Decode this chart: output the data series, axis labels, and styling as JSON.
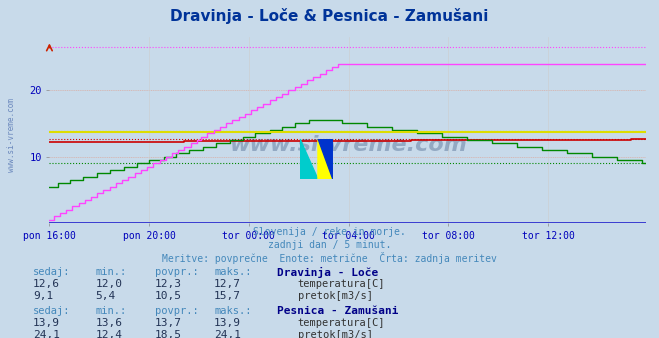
{
  "title": "Dravinja - Loče & Pesnica - Zamušani",
  "title_color": "#003399",
  "bg_color": "#c8daea",
  "plot_bg_color": "#c8daea",
  "x_label_color": "#0000bb",
  "x_ticks": [
    "pon 16:00",
    "pon 20:00",
    "tor 00:00",
    "tor 04:00",
    "tor 08:00",
    "tor 12:00"
  ],
  "x_tick_positions": [
    0,
    48,
    96,
    144,
    192,
    240
  ],
  "n_points": 288,
  "ylim": [
    0,
    28
  ],
  "yticks": [
    10,
    20
  ],
  "subtitle_lines": [
    "Slovenija / reke in morje.",
    "zadnji dan / 5 minut.",
    "Meritve: povprečne  Enote: metrične  Črta: zadnja meritev"
  ],
  "subtitle_color": "#4488bb",
  "s1_temp_color": "#cc0000",
  "s1_flow_color": "#008800",
  "s2_temp_color": "#dddd00",
  "s2_flow_color": "#ff44ff",
  "watermark": "www.si-vreme.com",
  "watermark_color": "#1a3a6a",
  "legend": {
    "station1": "Dravinja - Loče",
    "station1_color": "#000088",
    "s1_sedaj": "12,6",
    "s1_min": "12,0",
    "s1_povpr": "12,3",
    "s1_maks": "12,7",
    "s1_f_sedaj": "9,1",
    "s1_f_min": "5,4",
    "s1_f_povpr": "10,5",
    "s1_f_maks": "15,7",
    "station2": "Pesnica - Zamušani",
    "station2_color": "#000088",
    "s2_sedaj": "13,9",
    "s2_min": "13,6",
    "s2_povpr": "13,7",
    "s2_maks": "13,9",
    "s2_f_sedaj": "24,1",
    "s2_f_min": "12,4",
    "s2_f_povpr": "18,5",
    "s2_f_maks": "24,1"
  }
}
